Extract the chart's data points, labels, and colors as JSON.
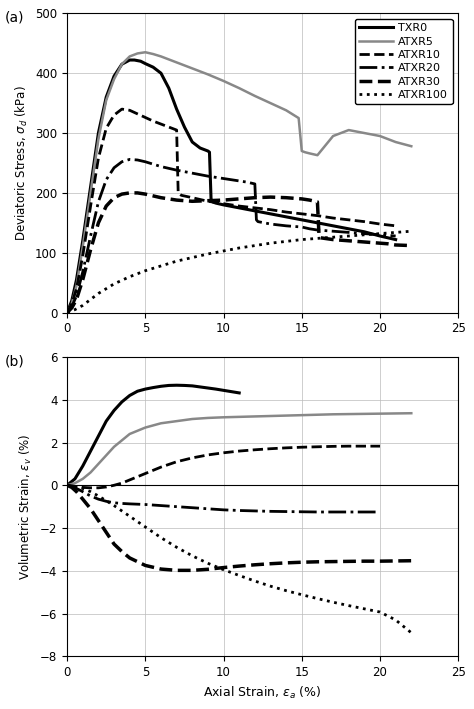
{
  "title_a": "(a)",
  "title_b": "(b)",
  "xlabel": "Axial Strain, ε$_a$ (%)",
  "ylabel_a": "Deviatoric Stress, σ$_d$ (kPa)",
  "ylabel_b": "Volumetric Strain, ε$_v$ (%)",
  "xlim": [
    0,
    25
  ],
  "ylim_a": [
    0,
    500
  ],
  "ylim_b": [
    -8,
    6
  ],
  "xticks": [
    0,
    5,
    10,
    15,
    20,
    25
  ],
  "yticks_a": [
    0,
    100,
    200,
    300,
    400,
    500
  ],
  "yticks_b": [
    -8,
    -6,
    -4,
    -2,
    0,
    2,
    4,
    6
  ],
  "series_labels": [
    "TXR0",
    "ATXR5",
    "ATXR10",
    "ATXR20",
    "ATXR30",
    "ATXR100"
  ],
  "line_styles": [
    "-",
    "-",
    "--",
    "-.",
    "--",
    ":"
  ],
  "line_colors": [
    "#000000",
    "#888888",
    "#000000",
    "#000000",
    "#000000",
    "#000000"
  ],
  "line_widths": [
    2.2,
    1.8,
    2.0,
    2.0,
    2.5,
    2.0
  ],
  "TXR0_stress_x": [
    0,
    0.3,
    0.6,
    1.0,
    1.5,
    2.0,
    2.5,
    3.0,
    3.5,
    4.0,
    4.3,
    4.7,
    5.0,
    5.5,
    6.0,
    6.5,
    7.0,
    7.5,
    8.0,
    8.5,
    9.0,
    9.1,
    9.2,
    9.3,
    9.5,
    10.0,
    11.0,
    12.0,
    13.0,
    14.0,
    15.0,
    16.0,
    17.0,
    18.0,
    19.0,
    20.0,
    20.5,
    21.0
  ],
  "TXR0_stress_y": [
    0,
    20,
    55,
    120,
    210,
    300,
    360,
    395,
    415,
    422,
    422,
    420,
    416,
    410,
    400,
    375,
    340,
    310,
    285,
    275,
    270,
    268,
    190,
    185,
    183,
    180,
    175,
    170,
    165,
    160,
    155,
    150,
    145,
    140,
    135,
    128,
    125,
    122
  ],
  "ATXR5_stress_x": [
    0,
    0.3,
    0.6,
    1.0,
    1.5,
    2.0,
    2.5,
    3.0,
    3.5,
    4.0,
    4.5,
    5.0,
    5.5,
    6.0,
    7.0,
    8.0,
    9.0,
    10.0,
    11.0,
    12.0,
    13.0,
    14.0,
    14.8,
    15.0,
    15.2,
    15.5,
    16.0,
    17.0,
    18.0,
    19.0,
    20.0,
    21.0,
    22.0
  ],
  "ATXR5_stress_y": [
    0,
    15,
    45,
    110,
    200,
    290,
    355,
    390,
    415,
    428,
    433,
    435,
    432,
    428,
    418,
    408,
    398,
    387,
    375,
    362,
    350,
    338,
    325,
    270,
    268,
    266,
    263,
    295,
    305,
    300,
    295,
    285,
    278
  ],
  "ATXR10_stress_x": [
    0,
    0.3,
    0.6,
    1.0,
    1.5,
    2.0,
    2.5,
    3.0,
    3.5,
    4.0,
    4.5,
    5.0,
    5.5,
    6.0,
    6.5,
    7.0,
    7.1,
    7.2,
    7.3,
    8.0,
    9.0,
    10.0,
    11.0,
    12.0,
    13.0,
    14.0,
    15.0,
    16.0,
    17.0,
    18.0,
    19.0,
    20.0,
    21.0
  ],
  "ATXR10_stress_y": [
    0,
    15,
    40,
    95,
    178,
    258,
    308,
    330,
    340,
    338,
    332,
    326,
    320,
    315,
    310,
    305,
    200,
    198,
    196,
    192,
    186,
    182,
    178,
    175,
    172,
    168,
    165,
    162,
    158,
    155,
    152,
    148,
    145
  ],
  "ATXR20_stress_x": [
    0,
    0.3,
    0.6,
    1.0,
    1.5,
    2.0,
    2.5,
    3.0,
    3.5,
    4.0,
    4.5,
    5.0,
    5.5,
    6.0,
    7.0,
    8.0,
    9.0,
    10.0,
    11.0,
    11.5,
    12.0,
    12.1,
    12.2,
    13.0,
    14.0,
    15.0,
    15.5,
    16.0,
    17.0,
    18.0,
    19.0,
    20.0,
    21.0
  ],
  "ATXR20_stress_y": [
    0,
    10,
    28,
    68,
    128,
    185,
    222,
    242,
    252,
    256,
    255,
    252,
    248,
    244,
    238,
    233,
    228,
    224,
    220,
    218,
    215,
    155,
    152,
    148,
    145,
    143,
    140,
    138,
    136,
    134,
    132,
    130,
    128
  ],
  "ATXR30_stress_x": [
    0,
    0.3,
    0.6,
    1.0,
    1.5,
    2.0,
    2.5,
    3.0,
    3.5,
    4.0,
    4.5,
    5.0,
    6.0,
    7.0,
    8.0,
    9.0,
    10.0,
    11.0,
    12.0,
    13.0,
    14.0,
    15.0,
    15.5,
    16.0,
    16.1,
    16.2,
    17.0,
    18.0,
    19.0,
    20.0,
    20.5,
    21.0,
    22.0
  ],
  "ATXR30_stress_y": [
    0,
    8,
    22,
    55,
    105,
    150,
    178,
    192,
    198,
    200,
    200,
    198,
    192,
    188,
    186,
    187,
    188,
    190,
    192,
    193,
    192,
    190,
    188,
    185,
    130,
    125,
    122,
    120,
    118,
    116,
    115,
    113,
    112
  ],
  "ATXR100_stress_x": [
    0,
    0.5,
    1.0,
    1.5,
    2.0,
    3.0,
    4.0,
    5.0,
    6.0,
    7.0,
    8.0,
    9.0,
    10.0,
    11.0,
    12.0,
    13.0,
    14.0,
    15.0,
    16.0,
    17.0,
    18.0,
    19.0,
    20.0,
    20.5,
    21.0,
    21.5,
    22.0
  ],
  "ATXR100_stress_y": [
    0,
    5,
    12,
    22,
    32,
    48,
    60,
    70,
    78,
    86,
    92,
    98,
    103,
    108,
    112,
    116,
    119,
    122,
    124,
    126,
    128,
    130,
    132,
    133,
    134,
    135,
    136
  ],
  "TXR0_vol_x": [
    0,
    0.5,
    1.0,
    1.5,
    2.0,
    2.5,
    3.0,
    3.5,
    4.0,
    4.5,
    5.0,
    5.5,
    6.0,
    6.5,
    7.0,
    7.5,
    8.0,
    8.5,
    9.0,
    9.5,
    10.0,
    10.5,
    11.0
  ],
  "TXR0_vol_y": [
    0,
    0.3,
    0.9,
    1.6,
    2.3,
    3.0,
    3.5,
    3.9,
    4.2,
    4.4,
    4.5,
    4.57,
    4.63,
    4.67,
    4.68,
    4.67,
    4.65,
    4.6,
    4.55,
    4.5,
    4.44,
    4.38,
    4.32
  ],
  "ATXR5_vol_x": [
    0,
    0.5,
    1.0,
    1.5,
    2.0,
    2.5,
    3.0,
    3.5,
    4.0,
    5.0,
    6.0,
    7.0,
    8.0,
    9.0,
    10.0,
    11.0,
    12.0,
    13.0,
    14.0,
    15.0,
    16.0,
    17.0,
    18.0,
    19.0,
    20.0,
    21.0,
    22.0
  ],
  "ATXR5_vol_y": [
    0,
    0.1,
    0.3,
    0.6,
    1.0,
    1.4,
    1.8,
    2.1,
    2.4,
    2.7,
    2.9,
    3.0,
    3.1,
    3.15,
    3.18,
    3.2,
    3.22,
    3.24,
    3.26,
    3.28,
    3.3,
    3.32,
    3.33,
    3.34,
    3.35,
    3.36,
    3.37
  ],
  "ATXR10_vol_x": [
    0,
    0.5,
    1.0,
    1.5,
    2.0,
    2.5,
    3.0,
    3.5,
    4.0,
    5.0,
    6.0,
    7.0,
    8.0,
    9.0,
    10.0,
    11.0,
    12.0,
    13.0,
    14.0,
    15.0,
    16.0,
    17.0,
    18.0,
    19.0,
    20.0
  ],
  "ATXR10_vol_y": [
    0,
    -0.05,
    -0.1,
    -0.12,
    -0.12,
    -0.08,
    0.0,
    0.1,
    0.25,
    0.55,
    0.85,
    1.1,
    1.28,
    1.42,
    1.52,
    1.6,
    1.66,
    1.71,
    1.75,
    1.78,
    1.8,
    1.82,
    1.83,
    1.83,
    1.83
  ],
  "ATXR20_vol_x": [
    0,
    0.3,
    0.6,
    1.0,
    1.5,
    2.0,
    2.5,
    3.0,
    3.5,
    4.0,
    5.0,
    6.0,
    7.0,
    8.0,
    9.0,
    10.0,
    11.0,
    12.0,
    13.0,
    14.0,
    15.0,
    16.0,
    17.0,
    18.0,
    19.0,
    20.0
  ],
  "ATXR20_vol_y": [
    0,
    -0.05,
    -0.15,
    -0.3,
    -0.5,
    -0.65,
    -0.75,
    -0.82,
    -0.85,
    -0.87,
    -0.9,
    -0.95,
    -1.0,
    -1.05,
    -1.1,
    -1.15,
    -1.18,
    -1.2,
    -1.22,
    -1.23,
    -1.24,
    -1.25,
    -1.25,
    -1.25,
    -1.25,
    -1.25
  ],
  "ATXR30_vol_x": [
    0,
    0.3,
    0.6,
    1.0,
    1.5,
    2.0,
    2.5,
    3.0,
    3.5,
    4.0,
    5.0,
    6.0,
    7.0,
    8.0,
    9.0,
    10.0,
    11.0,
    12.0,
    13.0,
    14.0,
    15.0,
    16.0,
    17.0,
    18.0,
    19.0,
    20.0,
    21.0,
    22.0
  ],
  "ATXR30_vol_y": [
    0,
    -0.1,
    -0.3,
    -0.65,
    -1.1,
    -1.65,
    -2.2,
    -2.75,
    -3.1,
    -3.4,
    -3.75,
    -3.92,
    -3.98,
    -3.98,
    -3.93,
    -3.85,
    -3.78,
    -3.72,
    -3.67,
    -3.63,
    -3.6,
    -3.58,
    -3.57,
    -3.56,
    -3.55,
    -3.55,
    -3.54,
    -3.53
  ],
  "ATXR100_vol_x": [
    0,
    0.5,
    1.0,
    1.5,
    2.0,
    3.0,
    4.0,
    5.0,
    6.0,
    7.0,
    8.0,
    9.0,
    10.0,
    11.0,
    12.0,
    13.0,
    14.0,
    15.0,
    16.0,
    17.0,
    18.0,
    19.0,
    20.0,
    21.0,
    22.0
  ],
  "ATXR100_vol_y": [
    0,
    -0.05,
    -0.15,
    -0.3,
    -0.5,
    -0.95,
    -1.45,
    -1.95,
    -2.45,
    -2.9,
    -3.3,
    -3.65,
    -3.95,
    -4.22,
    -4.48,
    -4.72,
    -4.93,
    -5.12,
    -5.3,
    -5.47,
    -5.63,
    -5.78,
    -5.93,
    -6.3,
    -6.9
  ]
}
